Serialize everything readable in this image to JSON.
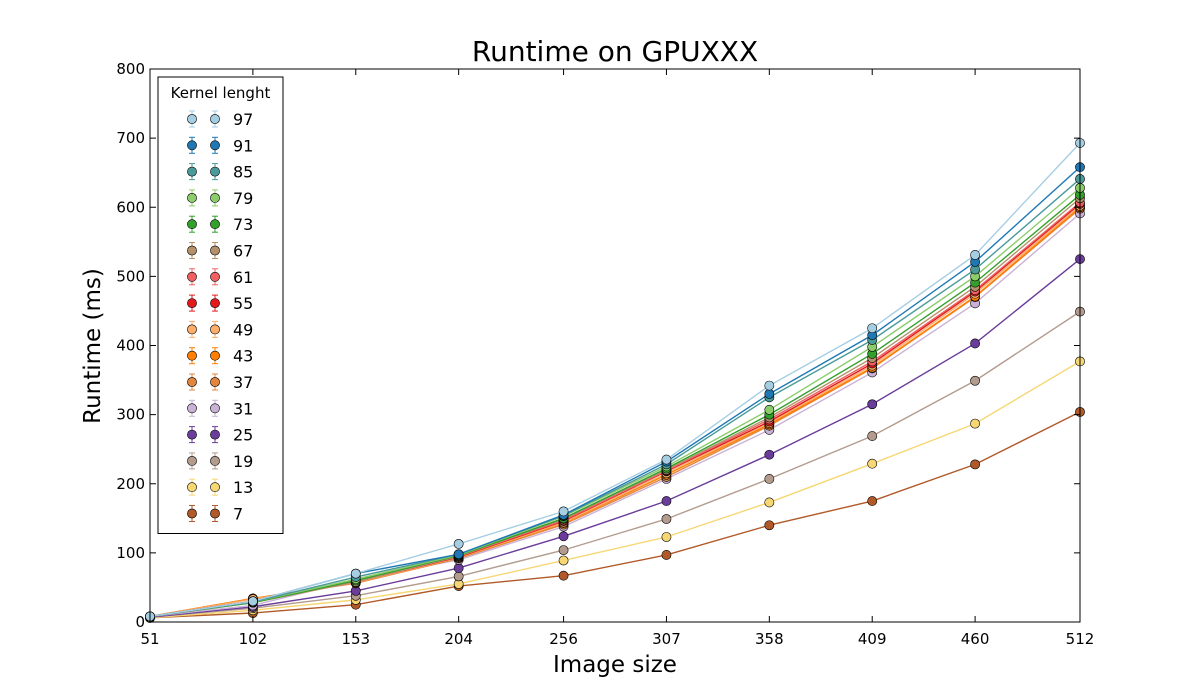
{
  "chart_data": {
    "type": "line",
    "title": "Runtime on GPUXXX",
    "xlabel": "Image size",
    "ylabel": "Runtime (ms)",
    "x": [
      51,
      102,
      153,
      204,
      256,
      307,
      358,
      409,
      460,
      512
    ],
    "xlim": [
      51,
      512
    ],
    "ylim": [
      0,
      800
    ],
    "yticks": [
      0,
      100,
      200,
      300,
      400,
      500,
      600,
      700,
      800
    ],
    "grid": false,
    "legend": {
      "title": "Kernel lenght",
      "placement": "top-left"
    },
    "series": [
      {
        "name": "97",
        "color": "#a6cee3",
        "values": [
          8,
          30,
          70,
          113,
          160,
          235,
          342,
          425,
          531,
          693
        ]
      },
      {
        "name": "91",
        "color": "#1f78b4",
        "values": [
          8,
          30,
          70,
          98,
          155,
          232,
          330,
          415,
          521,
          658
        ]
      },
      {
        "name": "85",
        "color": "#4a9a9a",
        "values": [
          8,
          29,
          65,
          98,
          154,
          228,
          325,
          408,
          510,
          641
        ]
      },
      {
        "name": "79",
        "color": "#8ccc6a",
        "values": [
          8,
          29,
          62,
          97,
          153,
          225,
          307,
          398,
          500,
          628
        ]
      },
      {
        "name": "73",
        "color": "#33a02c",
        "values": [
          8,
          28,
          60,
          96,
          150,
          222,
          300,
          388,
          491,
          618
        ]
      },
      {
        "name": "67",
        "color": "#b5916a",
        "values": [
          8,
          28,
          58,
          95,
          149,
          220,
          296,
          382,
          485,
          613
        ]
      },
      {
        "name": "61",
        "color": "#f06060",
        "values": [
          8,
          30,
          58,
          95,
          147,
          219,
          293,
          377,
          480,
          607
        ]
      },
      {
        "name": "55",
        "color": "#e31a1c",
        "values": [
          8,
          30,
          58,
          94,
          146,
          218,
          290,
          374,
          478,
          605
        ]
      },
      {
        "name": "49",
        "color": "#fdae6b",
        "values": [
          8,
          33,
          57,
          93,
          144,
          215,
          288,
          371,
          475,
          602
        ]
      },
      {
        "name": "43",
        "color": "#ff7f00",
        "values": [
          8,
          34,
          57,
          93,
          143,
          213,
          286,
          368,
          471,
          600
        ]
      },
      {
        "name": "37",
        "color": "#e3863d",
        "values": [
          8,
          34,
          56,
          92,
          141,
          210,
          284,
          367,
          470,
          598
        ]
      },
      {
        "name": "31",
        "color": "#cab2d6",
        "values": [
          8,
          24,
          61,
          90,
          138,
          207,
          278,
          361,
          461,
          591
        ]
      },
      {
        "name": "25",
        "color": "#6a3d9a",
        "values": [
          7,
          22,
          45,
          78,
          124,
          175,
          242,
          315,
          403,
          525
        ]
      },
      {
        "name": "19",
        "color": "#b39b8e",
        "values": [
          7,
          20,
          38,
          66,
          104,
          149,
          207,
          269,
          349,
          449
        ]
      },
      {
        "name": "13",
        "color": "#f7d774",
        "values": [
          6,
          17,
          32,
          55,
          89,
          123,
          173,
          229,
          287,
          377
        ]
      },
      {
        "name": "7",
        "color": "#b15928",
        "values": [
          6,
          13,
          25,
          52,
          67,
          97,
          140,
          175,
          228,
          304
        ]
      }
    ]
  }
}
